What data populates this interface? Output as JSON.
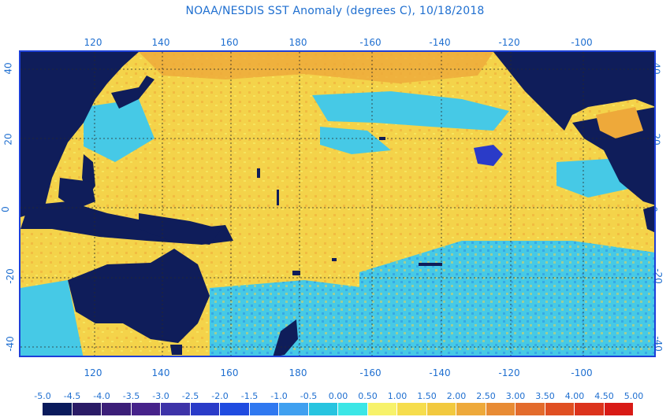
{
  "title": "NOAA/NESDIS SST Anomaly (degrees C), 10/18/2018",
  "axes": {
    "longitude_ticks": [
      "120",
      "140",
      "160",
      "180",
      "-160",
      "-140",
      "-120",
      "-100"
    ],
    "latitude_ticks": [
      "40",
      "20",
      "0",
      "-20",
      "-40"
    ]
  },
  "colorbar": {
    "labels": [
      "-5.0",
      "-4.5",
      "-4.0",
      "-3.5",
      "-3.0",
      "-2.5",
      "-2.0",
      "-1.5",
      "-1.0",
      "-0.5",
      "0.00",
      "0.50",
      "1.00",
      "1.50",
      "2.00",
      "2.50",
      "3.00",
      "3.50",
      "4.00",
      "4.50",
      "5.00"
    ],
    "colors": [
      "#0a1a5c",
      "#2a1b66",
      "#3b1e78",
      "#46228a",
      "#3d33a8",
      "#2a3bc8",
      "#1f4be0",
      "#2f78f0",
      "#3fa0f0",
      "#27c4e0",
      "#3be6e6",
      "#f7f26a",
      "#f6dd4c",
      "#f2c93e",
      "#eea93a",
      "#e88b34",
      "#e36b2c",
      "#e04f22",
      "#dc331c",
      "#d81a16"
    ]
  },
  "palette": {
    "land": "#0f1d5a",
    "warm": "#f4d34a",
    "warmer": "#eea93a",
    "cool": "#46c9e6",
    "cooler": "#2d95e6",
    "gridline": "#2a2a2a",
    "accent": "#1f6fd0"
  }
}
